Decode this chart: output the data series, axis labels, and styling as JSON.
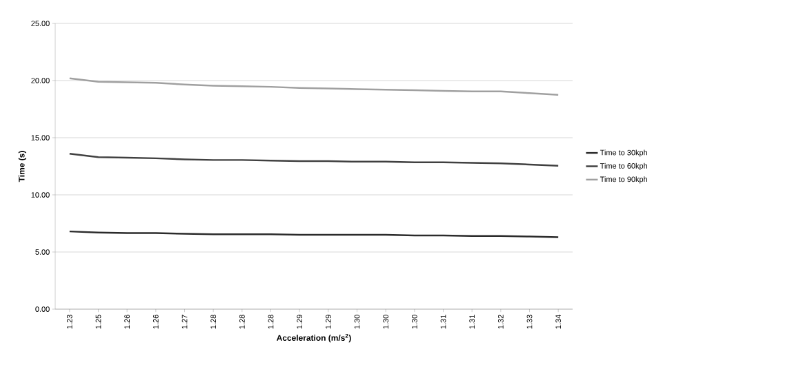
{
  "chart_data": {
    "type": "line",
    "xlabel": "Acceleration (m/s$^{2}$)",
    "ylabel": "Time (s)",
    "categories": [
      "1.23",
      "1.25",
      "1.26",
      "1.26",
      "1.27",
      "1.28",
      "1.28",
      "1.28",
      "1.29",
      "1.29",
      "1.30",
      "1.30",
      "1.30",
      "1.31",
      "1.31",
      "1.32",
      "1.33",
      "1.34"
    ],
    "series": [
      {
        "name": "Time to 30kph",
        "color": "#2b2b2b",
        "values": [
          6.8,
          6.7,
          6.65,
          6.65,
          6.6,
          6.55,
          6.55,
          6.55,
          6.5,
          6.5,
          6.5,
          6.5,
          6.45,
          6.45,
          6.4,
          6.4,
          6.35,
          6.3
        ]
      },
      {
        "name": "Time to 60kph",
        "color": "#404040",
        "values": [
          13.6,
          13.3,
          13.25,
          13.2,
          13.1,
          13.05,
          13.05,
          13.0,
          12.95,
          12.95,
          12.9,
          12.9,
          12.85,
          12.85,
          12.8,
          12.75,
          12.65,
          12.55
        ]
      },
      {
        "name": "Time to 90kph",
        "color": "#a0a0a0",
        "values": [
          20.2,
          19.9,
          19.85,
          19.8,
          19.65,
          19.55,
          19.5,
          19.45,
          19.35,
          19.3,
          19.25,
          19.2,
          19.15,
          19.1,
          19.05,
          19.05,
          18.9,
          18.75
        ]
      }
    ],
    "ylim": [
      0,
      25
    ],
    "yticks": [
      {
        "value": 0,
        "label": "0.00"
      },
      {
        "value": 5,
        "label": "5.00"
      },
      {
        "value": 10,
        "label": "10.00"
      },
      {
        "value": 15,
        "label": "15.00"
      },
      {
        "value": 20,
        "label": "20.00"
      },
      {
        "value": 25,
        "label": "25.00"
      }
    ],
    "grid": "y",
    "legend": "right",
    "marker": "none",
    "line_style": "solid"
  }
}
